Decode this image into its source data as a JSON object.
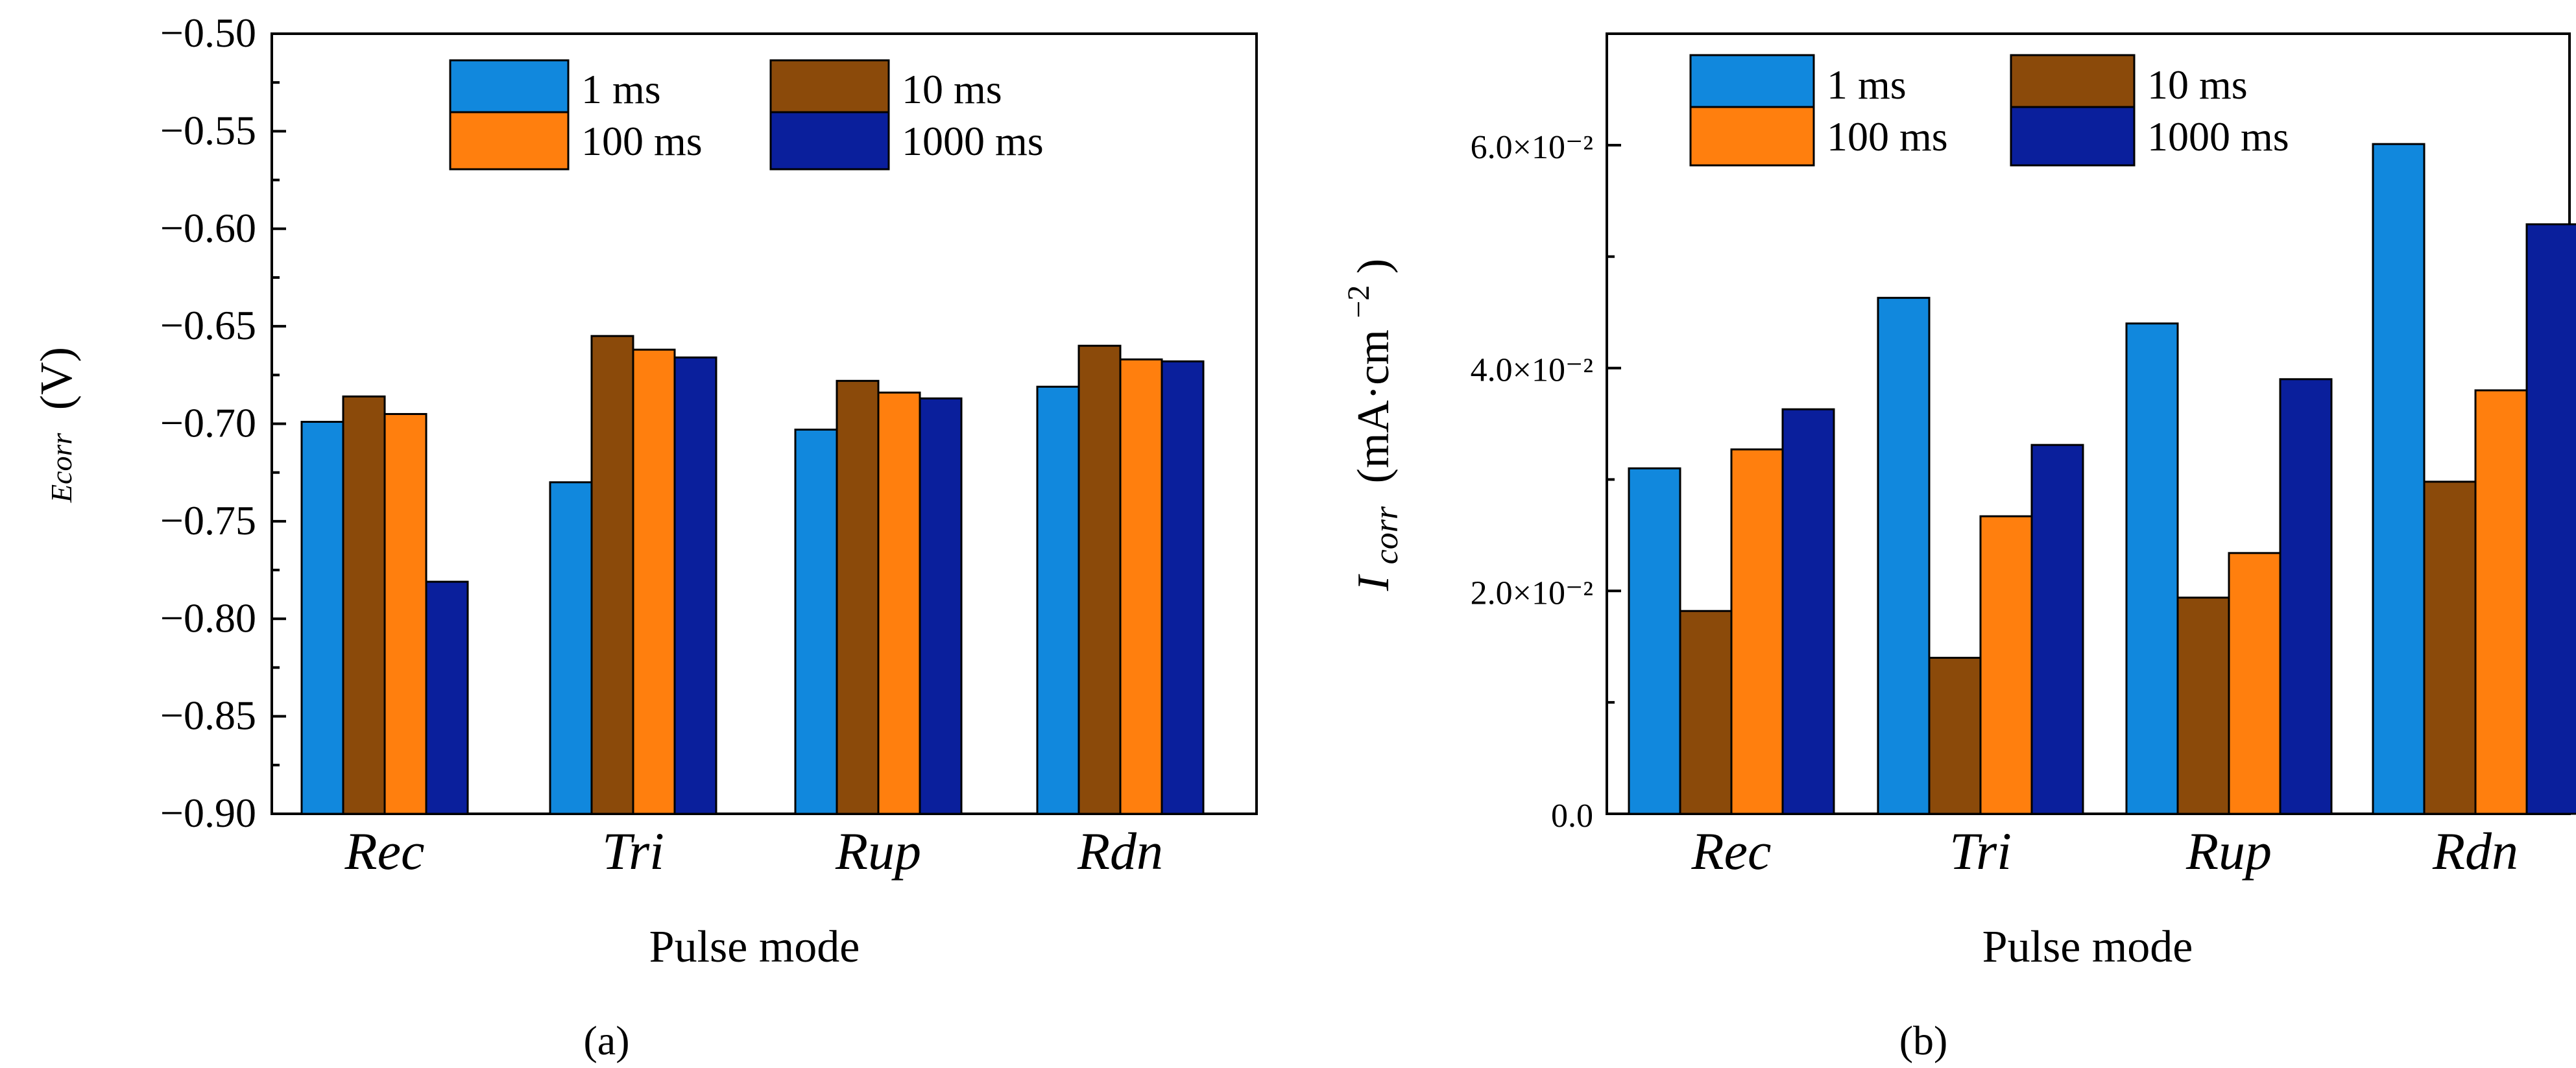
{
  "chart_data": [
    {
      "type": "bar",
      "panel_label": "(a)",
      "categories": [
        "Rec",
        "Tri",
        "Rup",
        "Rdn"
      ],
      "series": [
        {
          "name": "1 ms",
          "color": "#1188dd",
          "values": [
            -0.699,
            -0.73,
            -0.703,
            -0.681
          ]
        },
        {
          "name": "10 ms",
          "color": "#8b4a0a",
          "values": [
            -0.686,
            -0.655,
            -0.678,
            -0.66
          ]
        },
        {
          "name": "100 ms",
          "color": "#ff7f0e",
          "values": [
            -0.695,
            -0.662,
            -0.684,
            -0.667
          ]
        },
        {
          "name": "1000 ms",
          "color": "#0a1f9c",
          "values": [
            -0.781,
            -0.666,
            -0.687,
            -0.668
          ]
        }
      ],
      "xlabel": "Pulse mode",
      "ylabel": "Ecorr (V)",
      "ylabel_main": "Ecorr",
      "ylabel_unit": "(V)",
      "ylim": [
        -0.9,
        -0.5
      ],
      "yticks": [
        "−0.50",
        "−0.55",
        "−0.60",
        "−0.65",
        "−0.70",
        "−0.75",
        "−0.80",
        "−0.85",
        "−0.90"
      ],
      "ytick_values": [
        -0.5,
        -0.55,
        -0.6,
        -0.65,
        -0.7,
        -0.75,
        -0.8,
        -0.85,
        -0.9
      ],
      "baseline": -0.9,
      "legend_position": "top-right"
    },
    {
      "type": "bar",
      "panel_label": "(b)",
      "categories": [
        "Rec",
        "Tri",
        "Rup",
        "Rdn"
      ],
      "series": [
        {
          "name": "1 ms",
          "color": "#1188dd",
          "values": [
            0.031,
            0.0463,
            0.044,
            0.0601
          ]
        },
        {
          "name": "10 ms",
          "color": "#8b4a0a",
          "values": [
            0.0182,
            0.014,
            0.0194,
            0.0298
          ]
        },
        {
          "name": "100 ms",
          "color": "#ff7f0e",
          "values": [
            0.0327,
            0.0267,
            0.0234,
            0.038
          ]
        },
        {
          "name": "1000 ms",
          "color": "#0a1f9c",
          "values": [
            0.0363,
            0.0331,
            0.039,
            0.0529
          ]
        }
      ],
      "xlabel": "Pulse mode",
      "ylabel": "Icorr (mA·cm−2)",
      "ylabel_main": "I",
      "ylabel_sub": "corr",
      "ylabel_unit": "(mA·cm",
      "ylabel_sup": "−2",
      "ylabel_close": ")",
      "ylim": [
        0,
        0.07
      ],
      "yticks": [
        "0.0",
        "2.0×10⁻²",
        "4.0×10⁻²",
        "6.0×10⁻²"
      ],
      "ytick_values": [
        0,
        0.02,
        0.04,
        0.06
      ],
      "baseline": 0,
      "legend_position": "top"
    }
  ]
}
